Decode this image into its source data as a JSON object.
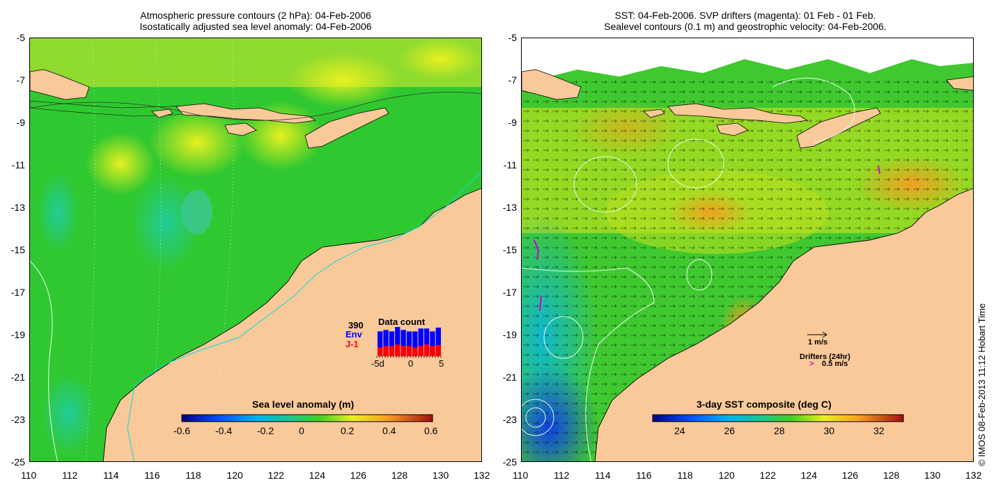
{
  "left_panel": {
    "title_line1": "Atmospheric pressure contours (2 hPa): 04-Feb-2006",
    "title_line2": "Isostatically adjusted sea level anomaly: 04-Feb-2006",
    "colorbar": {
      "label": "Sea level anomaly (m)",
      "ticks": [
        "-0.6",
        "-0.4",
        "-0.2",
        "0",
        "0.2",
        "0.4",
        "0.6"
      ]
    },
    "data_count": {
      "title": "Data count",
      "max": "390",
      "series_env": "Env",
      "series_j1": "J-1",
      "axis_labels": [
        "-5d",
        "0",
        "5"
      ],
      "env_colour": "#0000ff",
      "j1_colour": "#ff0000",
      "env_fraction": [
        0.55,
        0.55,
        0.5,
        0.6,
        0.55,
        0.5,
        0.55,
        0.6,
        0.55,
        0.5,
        0.6
      ],
      "j1_fraction": [
        0.3,
        0.35,
        0.35,
        0.4,
        0.35,
        0.35,
        0.3,
        0.35,
        0.4,
        0.35,
        0.38
      ]
    }
  },
  "right_panel": {
    "title_line1": "SST: 04-Feb-2006. SVP drifters (magenta): 01 Feb - 01 Feb.",
    "title_line2": "Sealevel contours (0.1 m) and geostrophic velocity: 04-Feb-2006.",
    "colorbar": {
      "label": "3-day SST composite (deg C)",
      "ticks": [
        "24",
        "26",
        "28",
        "30",
        "32"
      ]
    },
    "velocity_scale_label": "1 m/s",
    "drifters_label": "Drifters (24hr)",
    "drifters_speed_label": "0.5 m/s",
    "drifter_colour": "#cc00cc"
  },
  "axes": {
    "x_ticks": [
      "110",
      "112",
      "114",
      "116",
      "118",
      "120",
      "122",
      "124",
      "126",
      "128",
      "130",
      "132"
    ],
    "y_ticks": [
      "-5",
      "-7",
      "-9",
      "-11",
      "-13",
      "-15",
      "-17",
      "-19",
      "-21",
      "-23",
      "-25"
    ]
  },
  "colors": {
    "land": "#f9c99a",
    "sla_base": "#33cc22",
    "sst_warm": "#f0a020"
  },
  "credit": "© IMOS 08-Feb-2013 11:12 Hobart Time"
}
